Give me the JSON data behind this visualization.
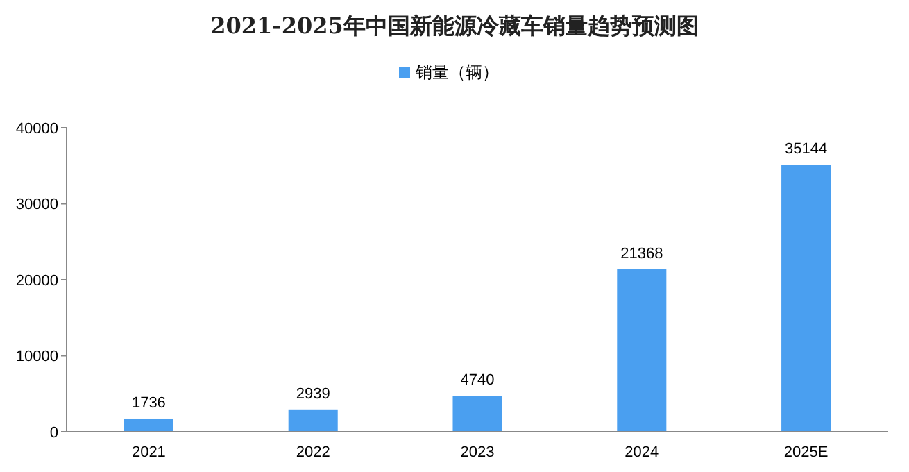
{
  "chart_data": {
    "type": "bar",
    "title": "2021-2025年中国新能源冷藏车销量趋势预测图",
    "categories": [
      "2021",
      "2022",
      "2023",
      "2024",
      "2025E"
    ],
    "series": [
      {
        "name": "销量（辆）",
        "color": "#4a9ff0",
        "values": [
          1736,
          2939,
          4740,
          21368,
          35144
        ]
      }
    ],
    "ylim": [
      0,
      40000
    ],
    "yticks": [
      0,
      10000,
      20000,
      30000,
      40000
    ],
    "data_labels": true,
    "legend": "top",
    "grid": false
  }
}
